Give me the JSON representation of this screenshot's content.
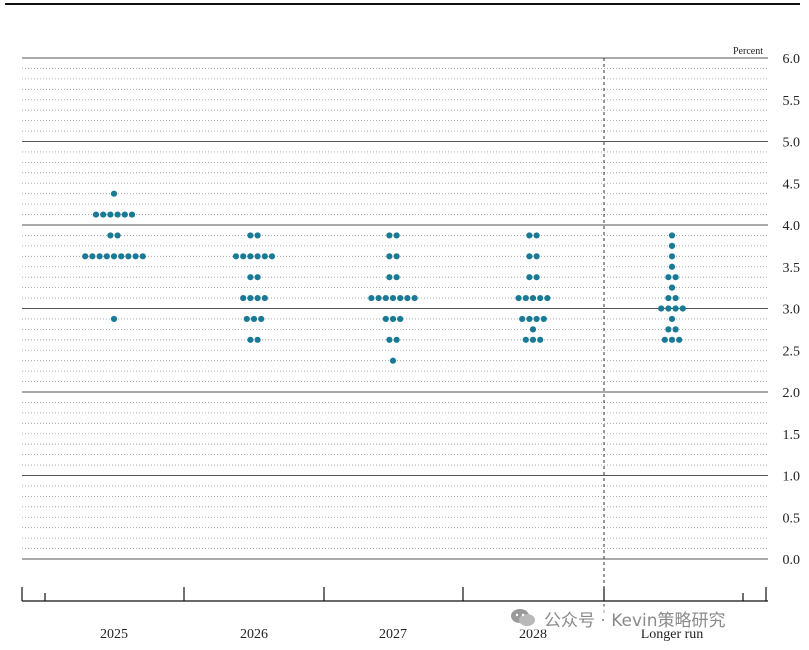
{
  "chart_data": {
    "type": "scatter",
    "subtype": "dot-plot",
    "unit_label": "Percent",
    "ylim": [
      0.0,
      6.0
    ],
    "y_ticks": [
      "0.0",
      "0.5",
      "1.0",
      "1.5",
      "2.0",
      "2.5",
      "3.0",
      "3.5",
      "4.0",
      "4.5",
      "5.0",
      "5.5",
      "6.0"
    ],
    "y_tick_step": 0.5,
    "minor_gridlines": "dotted every 0.125",
    "categories": [
      "2025",
      "2026",
      "2027",
      "2028",
      "Longer run"
    ],
    "dot_color": "#1a7a96",
    "points": [
      {
        "category": "2025",
        "values": [
          {
            "y": 4.375,
            "count": 1
          },
          {
            "y": 4.125,
            "count": 6
          },
          {
            "y": 3.875,
            "count": 2
          },
          {
            "y": 3.625,
            "count": 9
          },
          {
            "y": 2.875,
            "count": 1
          }
        ]
      },
      {
        "category": "2026",
        "values": [
          {
            "y": 3.875,
            "count": 2
          },
          {
            "y": 3.625,
            "count": 6
          },
          {
            "y": 3.375,
            "count": 2
          },
          {
            "y": 3.125,
            "count": 4
          },
          {
            "y": 2.875,
            "count": 3
          },
          {
            "y": 2.625,
            "count": 2
          }
        ]
      },
      {
        "category": "2027",
        "values": [
          {
            "y": 3.875,
            "count": 2
          },
          {
            "y": 3.625,
            "count": 2
          },
          {
            "y": 3.375,
            "count": 2
          },
          {
            "y": 3.125,
            "count": 7
          },
          {
            "y": 2.875,
            "count": 3
          },
          {
            "y": 2.625,
            "count": 2
          },
          {
            "y": 2.375,
            "count": 1
          }
        ]
      },
      {
        "category": "2028",
        "values": [
          {
            "y": 3.875,
            "count": 2
          },
          {
            "y": 3.625,
            "count": 2
          },
          {
            "y": 3.375,
            "count": 2
          },
          {
            "y": 3.125,
            "count": 5
          },
          {
            "y": 2.875,
            "count": 4
          },
          {
            "y": 2.75,
            "count": 1
          },
          {
            "y": 2.625,
            "count": 3
          }
        ]
      },
      {
        "category": "Longer run",
        "values": [
          {
            "y": 3.875,
            "count": 1
          },
          {
            "y": 3.75,
            "count": 1
          },
          {
            "y": 3.625,
            "count": 1
          },
          {
            "y": 3.5,
            "count": 1
          },
          {
            "y": 3.375,
            "count": 2
          },
          {
            "y": 3.25,
            "count": 1
          },
          {
            "y": 3.125,
            "count": 2
          },
          {
            "y": 3.0,
            "count": 4
          },
          {
            "y": 2.875,
            "count": 1
          },
          {
            "y": 2.75,
            "count": 2
          },
          {
            "y": 2.625,
            "count": 3
          }
        ]
      }
    ],
    "separator_before": "Longer run"
  },
  "watermark": {
    "text": "公众号 · Kevin策略研究",
    "icon": "wechat-icon"
  }
}
